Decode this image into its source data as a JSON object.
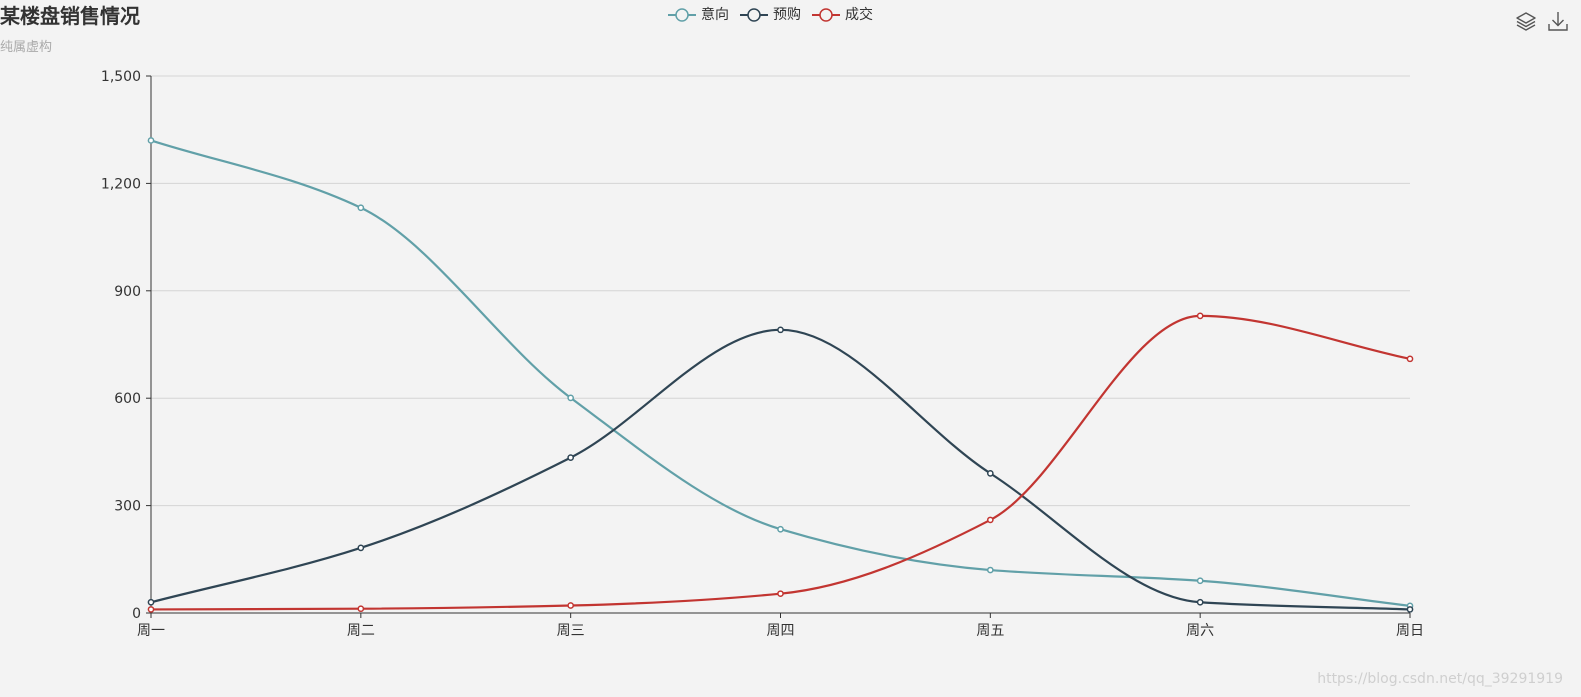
{
  "header": {
    "title": "某楼盘销售情况",
    "subtitle": "纯属虚构"
  },
  "legend": {
    "items": [
      {
        "label": "意向",
        "color": "#61a0a8"
      },
      {
        "label": "预购",
        "color": "#2f4554"
      },
      {
        "label": "成交",
        "color": "#c23531"
      }
    ]
  },
  "toolbox": {
    "icons": [
      "stack-icon",
      "download-icon"
    ]
  },
  "watermark": "https://blog.csdn.net/qq_39291919",
  "chart_data": {
    "type": "line",
    "smooth": true,
    "title": "某楼盘销售情况",
    "subtitle": "纯属虚构",
    "categories": [
      "周一",
      "周二",
      "周三",
      "周四",
      "周五",
      "周六",
      "周日"
    ],
    "ylim": [
      0,
      1500
    ],
    "yticks": [
      0,
      300,
      600,
      900,
      1200,
      1500
    ],
    "ytick_labels": [
      "0",
      "300",
      "600",
      "900",
      "1,200",
      "1,500"
    ],
    "grid": "horizontal",
    "legend_position": "top-center",
    "series": [
      {
        "name": "意向",
        "color": "#61a0a8",
        "values": [
          1320,
          1132,
          601,
          234,
          120,
          90,
          20
        ]
      },
      {
        "name": "预购",
        "color": "#2f4554",
        "values": [
          30,
          182,
          434,
          791,
          390,
          30,
          10
        ]
      },
      {
        "name": "成交",
        "color": "#c23531",
        "values": [
          10,
          12,
          21,
          54,
          260,
          830,
          710
        ]
      }
    ]
  }
}
